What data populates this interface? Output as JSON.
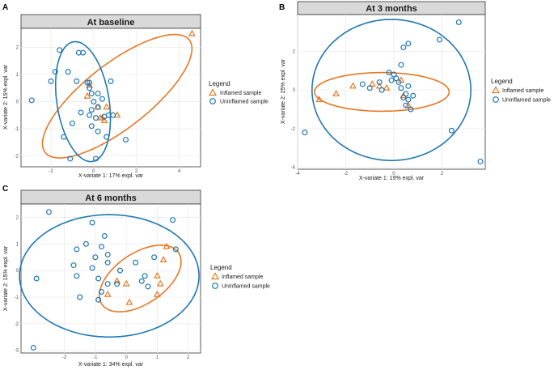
{
  "figure": {
    "panel_labels": [
      "A",
      "B",
      "C"
    ]
  },
  "colors": {
    "inflamed": "#e87722",
    "uninflamed": "#1f78b4",
    "strip": "#d9d9d9",
    "grid": "#ebebeb"
  },
  "legend": {
    "title": "Legend",
    "inflamed_label": "Inflamed sample",
    "uninflamed_label": "Uninflamed sample"
  },
  "chart_data": [
    {
      "type": "scatter",
      "panel": "A",
      "title": "At baseline",
      "xlabel": "X-variate 1: 17% expl. var",
      "ylabel": "X-variate 2: 15% expl. var",
      "xlim": [
        -3.4,
        5.0
      ],
      "ylim": [
        -2.4,
        2.7
      ],
      "xticks": [
        -2,
        0,
        2,
        4
      ],
      "yticks": [
        -2,
        -1,
        0,
        1,
        2
      ],
      "grid": true,
      "legend_position": "right",
      "series": [
        {
          "name": "Inflamed sample",
          "marker": "triangle",
          "color": "#e87722",
          "points": [
            [
              4.6,
              2.5
            ],
            [
              -0.2,
              0.6
            ],
            [
              -0.3,
              0.2
            ],
            [
              0.2,
              -0.2
            ],
            [
              0.6,
              -0.2
            ],
            [
              1.1,
              -0.5
            ],
            [
              0.4,
              -0.6
            ],
            [
              0.3,
              -0.6
            ],
            [
              0.5,
              -0.7
            ]
          ],
          "ellipse": {
            "cx": 1.1,
            "cy": 0.2,
            "rx": 3.97,
            "ry": 1.28,
            "angle_deg": 30
          }
        },
        {
          "name": "Uninflamed sample",
          "marker": "circle",
          "color": "#1f78b4",
          "points": [
            [
              -2.9,
              0.05
            ],
            [
              -1.6,
              1.9
            ],
            [
              -0.7,
              1.8
            ],
            [
              -0.5,
              1.8
            ],
            [
              -1.8,
              1.1
            ],
            [
              -1.2,
              1.1
            ],
            [
              -2.0,
              0.75
            ],
            [
              -0.8,
              0.75
            ],
            [
              -0.3,
              0.7
            ],
            [
              -0.2,
              0.7
            ],
            [
              0.8,
              0.75
            ],
            [
              -0.2,
              0.5
            ],
            [
              -0.1,
              0.3
            ],
            [
              0.2,
              0.3
            ],
            [
              0.4,
              0.1
            ],
            [
              0.0,
              0.0
            ],
            [
              0.2,
              -0.2
            ],
            [
              -0.1,
              -0.3
            ],
            [
              -0.6,
              -0.4
            ],
            [
              -0.2,
              -0.5
            ],
            [
              0.1,
              -0.6
            ],
            [
              0.5,
              -0.55
            ],
            [
              0.7,
              -0.5
            ],
            [
              0.9,
              -0.5
            ],
            [
              -1.0,
              -0.8
            ],
            [
              -0.1,
              -0.9
            ],
            [
              0.2,
              -1.1
            ],
            [
              -1.4,
              -1.3
            ],
            [
              0.6,
              -1.3
            ],
            [
              1.5,
              -1.4
            ],
            [
              -1.1,
              -2.1
            ],
            [
              0.1,
              -2.1
            ]
          ],
          "ellipse": {
            "cx": -0.5,
            "cy": 0.0,
            "rx": 2.25,
            "ry": 1.21,
            "angle_deg": 103
          }
        }
      ]
    },
    {
      "type": "scatter",
      "panel": "B",
      "title": "At 3 months",
      "xlabel": "X-variate 1: 19% expl. var",
      "ylabel": "X-variate 2: 25% expl. var",
      "xlim": [
        -4.0,
        3.8
      ],
      "ylim": [
        -4.1,
        3.9
      ],
      "xticks": [
        -4,
        -2,
        0,
        2
      ],
      "yticks": [
        -4,
        -2,
        0,
        2
      ],
      "grid": true,
      "legend_position": "right",
      "series": [
        {
          "name": "Inflamed sample",
          "marker": "triangle",
          "color": "#e87722",
          "points": [
            [
              -3.1,
              -0.5
            ],
            [
              -2.4,
              -0.2
            ],
            [
              -1.7,
              0.2
            ],
            [
              -0.9,
              0.3
            ],
            [
              -0.6,
              0.2
            ],
            [
              -0.3,
              0.1
            ],
            [
              0.3,
              0.5
            ],
            [
              0.4,
              -0.3
            ],
            [
              0.6,
              -0.8
            ]
          ],
          "ellipse": {
            "cx": -0.5,
            "cy": -0.1,
            "rx": 2.8,
            "ry": 1.0,
            "angle_deg": 0
          }
        },
        {
          "name": "Uninflamed sample",
          "marker": "circle",
          "color": "#1f78b4",
          "points": [
            [
              2.7,
              3.5
            ],
            [
              0.6,
              2.4
            ],
            [
              1.9,
              2.6
            ],
            [
              0.4,
              2.2
            ],
            [
              0.3,
              1.3
            ],
            [
              -0.2,
              0.9
            ],
            [
              0.0,
              0.8
            ],
            [
              0.1,
              0.6
            ],
            [
              -0.1,
              0.5
            ],
            [
              0.2,
              0.4
            ],
            [
              -0.6,
              0.4
            ],
            [
              -1.3,
              0.3
            ],
            [
              -1.0,
              0.1
            ],
            [
              -0.5,
              0.0
            ],
            [
              0.3,
              0.1
            ],
            [
              0.6,
              0.2
            ],
            [
              0.5,
              -0.2
            ],
            [
              0.8,
              -0.3
            ],
            [
              0.4,
              -0.4
            ],
            [
              0.6,
              -0.5
            ],
            [
              0.5,
              -0.8
            ],
            [
              0.7,
              -1.0
            ],
            [
              -3.7,
              -2.2
            ],
            [
              2.4,
              -2.1
            ],
            [
              3.6,
              -3.7
            ]
          ],
          "ellipse": {
            "cx": -0.1,
            "cy": 0.0,
            "rx": 3.3,
            "ry": 3.65,
            "angle_deg": 0
          }
        }
      ]
    },
    {
      "type": "scatter",
      "panel": "C",
      "title": "At 6 months",
      "xlabel": "X-variate 1: 34% expl. var",
      "ylabel": "X-variate 2: 15% expl. var",
      "xlim": [
        -3.4,
        2.4
      ],
      "ylim": [
        -3.1,
        2.5
      ],
      "xticks": [
        -2,
        -1,
        0,
        1,
        2
      ],
      "yticks": [
        -3,
        -2,
        -1,
        0,
        1,
        2
      ],
      "grid": true,
      "legend_position": "right",
      "series": [
        {
          "name": "Inflamed sample",
          "marker": "triangle",
          "color": "#e87722",
          "points": [
            [
              1.3,
              0.9
            ],
            [
              1.2,
              0.4
            ],
            [
              1.0,
              -0.2
            ],
            [
              -0.3,
              -0.4
            ],
            [
              0.0,
              -0.5
            ],
            [
              1.1,
              -0.5
            ],
            [
              -0.6,
              -0.9
            ],
            [
              1.0,
              -0.9
            ],
            [
              0.1,
              -1.2
            ]
          ],
          "ellipse": {
            "cx": 0.45,
            "cy": -0.3,
            "rx": 1.58,
            "ry": 0.9,
            "angle_deg": 42
          }
        },
        {
          "name": "Uninflamed sample",
          "marker": "circle",
          "color": "#1f78b4",
          "points": [
            [
              -2.5,
              2.2
            ],
            [
              -1.1,
              1.8
            ],
            [
              1.5,
              1.9
            ],
            [
              -0.7,
              1.3
            ],
            [
              -1.3,
              1.0
            ],
            [
              -0.8,
              0.9
            ],
            [
              -1.6,
              0.8
            ],
            [
              -0.6,
              0.6
            ],
            [
              -1.0,
              0.5
            ],
            [
              -0.6,
              0.3
            ],
            [
              0.3,
              0.3
            ],
            [
              0.9,
              0.5
            ],
            [
              1.6,
              0.8
            ],
            [
              -1.7,
              0.2
            ],
            [
              -1.1,
              0.1
            ],
            [
              -0.2,
              0.0
            ],
            [
              -1.6,
              -0.2
            ],
            [
              -2.9,
              -0.3
            ],
            [
              -0.9,
              -0.3
            ],
            [
              -0.6,
              -0.5
            ],
            [
              -0.3,
              -0.5
            ],
            [
              0.5,
              -0.4
            ],
            [
              0.6,
              -0.2
            ],
            [
              0.7,
              -0.6
            ],
            [
              -0.8,
              -0.8
            ],
            [
              -1.5,
              -1.0
            ],
            [
              -0.9,
              -1.1
            ],
            [
              -3.0,
              -2.9
            ]
          ],
          "ellipse": {
            "cx": -0.55,
            "cy": -0.2,
            "rx": 2.9,
            "ry": 2.3,
            "angle_deg": 0
          }
        }
      ]
    }
  ]
}
